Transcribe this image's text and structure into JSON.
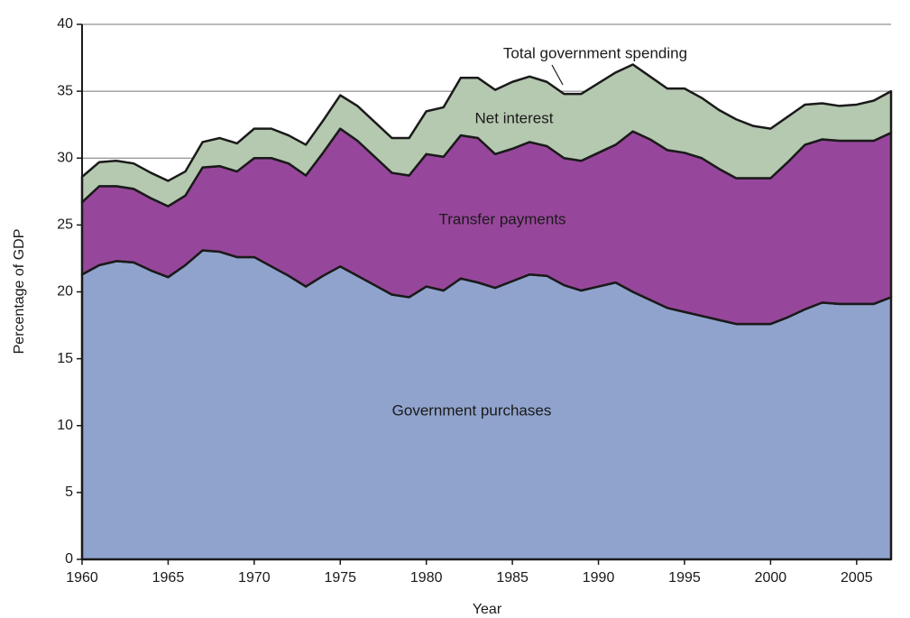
{
  "chart_data": {
    "type": "stacked_area",
    "x_label": "Year",
    "y_label": "Percentage of GDP",
    "x": [
      1960,
      1961,
      1962,
      1963,
      1964,
      1965,
      1966,
      1967,
      1968,
      1969,
      1970,
      1971,
      1972,
      1973,
      1974,
      1975,
      1976,
      1977,
      1978,
      1979,
      1980,
      1981,
      1982,
      1983,
      1984,
      1985,
      1986,
      1987,
      1988,
      1989,
      1990,
      1991,
      1992,
      1993,
      1994,
      1995,
      1996,
      1997,
      1998,
      1999,
      2000,
      2001,
      2002,
      2003,
      2004,
      2005,
      2006,
      2007
    ],
    "series": [
      {
        "name": "Government purchases",
        "color": "#8fa3cc",
        "values": [
          21.3,
          22.0,
          22.3,
          22.2,
          21.6,
          21.1,
          22.0,
          23.1,
          23.0,
          22.6,
          22.6,
          21.9,
          21.2,
          20.4,
          21.2,
          21.9,
          21.2,
          20.5,
          19.8,
          19.6,
          20.4,
          20.1,
          21.0,
          20.7,
          20.3,
          20.8,
          21.3,
          21.2,
          20.5,
          20.1,
          20.4,
          20.7,
          20.0,
          19.4,
          18.8,
          18.5,
          18.2,
          17.9,
          17.6,
          17.6,
          17.6,
          18.1,
          18.7,
          19.2,
          19.1,
          19.1,
          19.1,
          19.6
        ]
      },
      {
        "name": "Transfer payments",
        "color": "#97479b",
        "values": [
          5.4,
          5.9,
          5.6,
          5.5,
          5.4,
          5.3,
          5.2,
          6.2,
          6.4,
          6.4,
          7.4,
          8.1,
          8.4,
          8.3,
          9.2,
          10.3,
          10.1,
          9.6,
          9.1,
          9.1,
          9.9,
          10.0,
          10.7,
          10.8,
          10.0,
          9.9,
          9.9,
          9.7,
          9.5,
          9.7,
          10.0,
          10.3,
          12.0,
          12.0,
          11.8,
          11.9,
          11.8,
          11.3,
          10.9,
          10.9,
          10.9,
          11.6,
          12.3,
          12.2,
          12.2,
          12.2,
          12.2,
          12.3
        ]
      },
      {
        "name": "Net interest",
        "color": "#b5c8b0",
        "values": [
          1.9,
          1.8,
          1.9,
          1.9,
          1.9,
          1.9,
          1.8,
          1.9,
          2.1,
          2.1,
          2.2,
          2.2,
          2.1,
          2.3,
          2.4,
          2.5,
          2.6,
          2.6,
          2.6,
          2.8,
          3.2,
          3.7,
          4.3,
          4.5,
          4.8,
          5.0,
          4.9,
          4.8,
          4.8,
          5.0,
          5.2,
          5.4,
          5.0,
          4.7,
          4.6,
          4.8,
          4.5,
          4.4,
          4.4,
          3.9,
          3.7,
          3.4,
          3.0,
          2.7,
          2.6,
          2.7,
          3.0,
          3.1
        ]
      }
    ],
    "annotations": [
      "Total government spending"
    ],
    "xlim": [
      1960,
      2007
    ],
    "xticks": [
      1960,
      1965,
      1970,
      1975,
      1980,
      1985,
      1990,
      1995,
      2000,
      2005
    ],
    "ylim": [
      0,
      40
    ],
    "yticks": [
      0,
      5,
      10,
      15,
      20,
      25,
      30,
      35,
      40
    ],
    "grid": true
  }
}
